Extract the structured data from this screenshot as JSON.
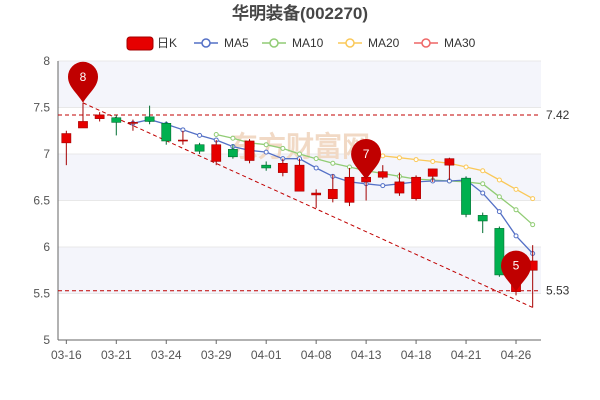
{
  "chart_data": {
    "type": "candlestick",
    "title": "华明装备(002270)",
    "legend": [
      "日K",
      "MA5",
      "MA10",
      "MA20",
      "MA30"
    ],
    "legend_placement": "top",
    "ylim": [
      5,
      8
    ],
    "y_ticks": [
      "5",
      "5.5",
      "6",
      "6.5",
      "7",
      "7.5",
      "8"
    ],
    "x_tick_labels": [
      "03-16",
      "03-21",
      "03-24",
      "03-29",
      "04-01",
      "04-08",
      "04-13",
      "04-18",
      "04-21",
      "04-26"
    ],
    "x_tick_index": [
      0,
      3,
      6,
      9,
      12,
      15,
      18,
      21,
      24,
      27
    ],
    "grid": "horizontal",
    "dates": [
      "03-16",
      "03-17",
      "03-18",
      "03-21",
      "03-22",
      "03-23",
      "03-24",
      "03-25",
      "03-28",
      "03-29",
      "03-30",
      "03-31",
      "04-01",
      "04-06",
      "04-07",
      "04-08",
      "04-11",
      "04-12",
      "04-13",
      "04-14",
      "04-15",
      "04-18",
      "04-19",
      "04-20",
      "04-21",
      "04-22",
      "04-25",
      "04-26",
      "04-27"
    ],
    "open": [
      7.12,
      7.28,
      7.38,
      7.39,
      7.34,
      7.4,
      7.33,
      7.15,
      7.1,
      6.92,
      7.05,
      6.93,
      6.88,
      6.8,
      6.6,
      6.56,
      6.52,
      6.48,
      6.7,
      6.75,
      6.58,
      6.52,
      6.76,
      6.88,
      6.74,
      6.34,
      6.2,
      5.52,
      5.75
    ],
    "high": [
      7.25,
      7.55,
      7.45,
      7.42,
      7.37,
      7.52,
      7.35,
      7.25,
      7.12,
      7.15,
      7.1,
      7.16,
      6.92,
      6.95,
      6.95,
      6.62,
      6.78,
      6.85,
      6.82,
      6.88,
      6.8,
      6.77,
      6.84,
      6.96,
      6.76,
      6.37,
      6.22,
      5.85,
      6.02
    ],
    "low": [
      6.88,
      7.28,
      7.35,
      7.2,
      7.25,
      7.32,
      7.1,
      7.1,
      7.0,
      6.88,
      6.95,
      6.9,
      6.82,
      6.76,
      6.6,
      6.42,
      6.48,
      6.44,
      6.5,
      6.73,
      6.55,
      6.5,
      6.7,
      6.72,
      6.32,
      6.15,
      5.68,
      5.48,
      5.35
    ],
    "close": [
      7.22,
      7.35,
      7.42,
      7.34,
      7.34,
      7.35,
      7.14,
      7.15,
      7.03,
      7.1,
      6.97,
      7.14,
      6.85,
      6.9,
      6.88,
      6.58,
      6.62,
      6.75,
      6.75,
      6.81,
      6.7,
      6.75,
      6.84,
      6.95,
      6.35,
      6.28,
      5.7,
      5.85,
      5.85
    ],
    "ma5": [
      null,
      null,
      null,
      null,
      7.33,
      7.37,
      7.32,
      7.26,
      7.2,
      7.15,
      7.08,
      7.04,
      7.02,
      6.95,
      6.95,
      6.85,
      6.76,
      6.7,
      6.68,
      6.66,
      6.68,
      6.7,
      6.71,
      6.71,
      6.72,
      6.58,
      6.38,
      6.12,
      5.93
    ],
    "ma10": [
      null,
      null,
      null,
      null,
      null,
      null,
      null,
      null,
      null,
      7.21,
      7.17,
      7.12,
      7.1,
      7.06,
      7.0,
      6.95,
      6.9,
      6.86,
      6.82,
      6.79,
      6.76,
      6.73,
      6.72,
      6.71,
      6.7,
      6.68,
      6.54,
      6.4,
      6.24
    ],
    "ma20": [
      null,
      null,
      null,
      null,
      null,
      null,
      null,
      null,
      null,
      null,
      null,
      null,
      null,
      null,
      null,
      null,
      null,
      null,
      null,
      6.98,
      6.96,
      6.94,
      6.92,
      6.9,
      6.86,
      6.82,
      6.72,
      6.62,
      6.52
    ],
    "ma30": [],
    "reference_lines": [
      {
        "value": 7.42,
        "label": "7.42"
      },
      {
        "value": 5.53,
        "label": "5.53"
      }
    ],
    "trend_line": {
      "from_index": 1,
      "from_value": 7.55,
      "to_index": 28,
      "to_value": 5.35
    },
    "markers": [
      {
        "label": "8",
        "index": 1,
        "value": 7.55
      },
      {
        "label": "7",
        "index": 18,
        "value": 6.72
      },
      {
        "label": "5",
        "index": 27,
        "value": 5.52
      }
    ],
    "colors": {
      "up": "#e60000",
      "down": "#00b04f",
      "ma5": "#5470c6",
      "ma10": "#91cc75",
      "ma20": "#fac858",
      "ma30": "#ee6666",
      "reference": "#c00000",
      "axis": "#666666",
      "grid": "#e8e8e8",
      "band": "#f4f5fb"
    }
  },
  "watermark": "东方财富网"
}
